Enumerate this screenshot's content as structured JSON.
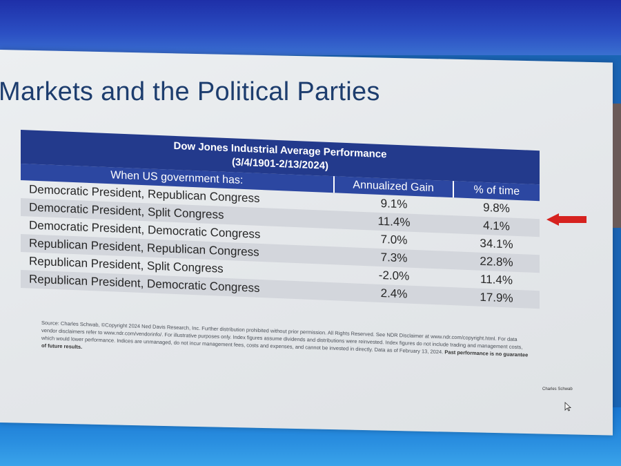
{
  "slide": {
    "title": "Markets and the Political Parties"
  },
  "table": {
    "title_line1": "Dow Jones Industrial Average Performance",
    "title_line2": "(3/4/1901-2/13/2024)",
    "columns": [
      "When US government has:",
      "Annualized Gain",
      "% of time"
    ],
    "rows": [
      {
        "label": "Democratic President, Republican Congress",
        "gain": "9.1%",
        "time": "9.8%"
      },
      {
        "label": "Democratic President, Split Congress",
        "gain": "11.4%",
        "time": "4.1%"
      },
      {
        "label": "Democratic President, Democratic Congress",
        "gain": "7.0%",
        "time": "34.1%"
      },
      {
        "label": "Republican President, Republican Congress",
        "gain": "7.3%",
        "time": "22.8%"
      },
      {
        "label": "Republican President, Split Congress",
        "gain": "-2.0%",
        "time": "11.4%"
      },
      {
        "label": "Republican President, Democratic Congress",
        "gain": "2.4%",
        "time": "17.9%"
      }
    ]
  },
  "source": {
    "text": "Source: Charles Schwab, ©Copyright 2024 Ned Davis Research, Inc. Further distribution prohibited without prior permission. All Rights Reserved. See NDR Disclaimer at www.ndr.com/copyright.html. For data vendor disclaimers refer to www.ndr.com/vendorinfo/. For illustrative purposes only. Index figures assume dividends and distributions were reinvested. Index figures do not include trading and management costs, which would lower performance. Indices are unmanaged, do not incur management fees, costs and expenses, and cannot be invested in directly. Data as of February 13, 2024.",
    "bold_text": "Past performance is no guarantee of future results."
  },
  "branding": {
    "logo_text": "Charles Schwab"
  },
  "colors": {
    "header_bg": "#233a8c",
    "accent_arrow": "#d6221f",
    "title_color": "#1d3d6e"
  }
}
